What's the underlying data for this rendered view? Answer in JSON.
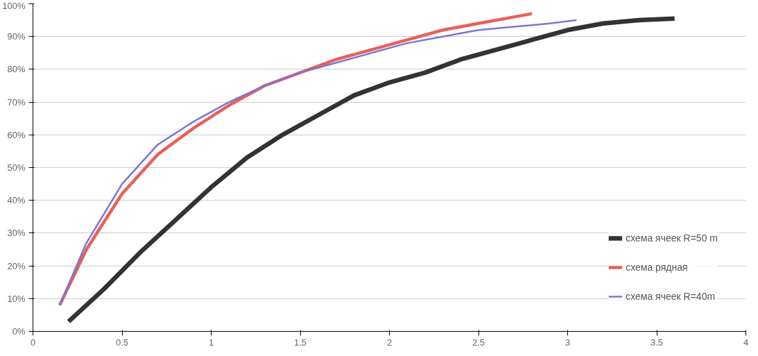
{
  "chart_data": {
    "type": "line",
    "xlim": [
      0,
      4
    ],
    "ylim": [
      0,
      100
    ],
    "xticks": [
      0,
      0.5,
      1,
      1.5,
      2,
      2.5,
      3,
      3.5,
      4
    ],
    "yticks": [
      {
        "value": 0,
        "label": "0%"
      },
      {
        "value": 10,
        "label": "10%"
      },
      {
        "value": 20,
        "label": "20%"
      },
      {
        "value": 30,
        "label": "30%"
      },
      {
        "value": 40,
        "label": "40%"
      },
      {
        "value": 50,
        "label": "50%"
      },
      {
        "value": 60,
        "label": "60%"
      },
      {
        "value": 70,
        "label": "70%"
      },
      {
        "value": 80,
        "label": "80%"
      },
      {
        "value": 90,
        "label": "90%"
      },
      {
        "value": 100,
        "label": "100%"
      }
    ],
    "grid": "y",
    "legend": "bottom right",
    "marker": "none",
    "line_style": "solid",
    "series": [
      {
        "name": "схема ячеек R=50 m",
        "color": "#333333",
        "x": [
          0.2,
          0.4,
          0.6,
          0.8,
          1.0,
          1.2,
          1.4,
          1.6,
          1.8,
          2.0,
          2.2,
          2.4,
          2.6,
          2.8,
          3.0,
          3.2,
          3.4,
          3.6
        ],
        "values": [
          3,
          13,
          24,
          34,
          44,
          53,
          60,
          66,
          72,
          76,
          79,
          83,
          86,
          89,
          92,
          94,
          95,
          95.5
        ]
      },
      {
        "name": "схема рядная",
        "color": "#e8605a",
        "x": [
          0.15,
          0.3,
          0.5,
          0.7,
          0.9,
          1.1,
          1.3,
          1.5,
          1.7,
          1.9,
          2.1,
          2.3,
          2.5,
          2.7,
          2.8
        ],
        "values": [
          8,
          25,
          42,
          54,
          62,
          69,
          75,
          79,
          83,
          86,
          89,
          92,
          94,
          96,
          97
        ]
      },
      {
        "name": "схема ячеек R=40m",
        "color": "#7b74d8",
        "x": [
          0.15,
          0.3,
          0.5,
          0.7,
          0.9,
          1.1,
          1.3,
          1.5,
          1.7,
          1.9,
          2.1,
          2.3,
          2.5,
          2.7,
          2.9,
          3.05
        ],
        "values": [
          8,
          27,
          45,
          57,
          64,
          70,
          75,
          79,
          82,
          85,
          88,
          90,
          92,
          93,
          94,
          95
        ]
      }
    ]
  }
}
